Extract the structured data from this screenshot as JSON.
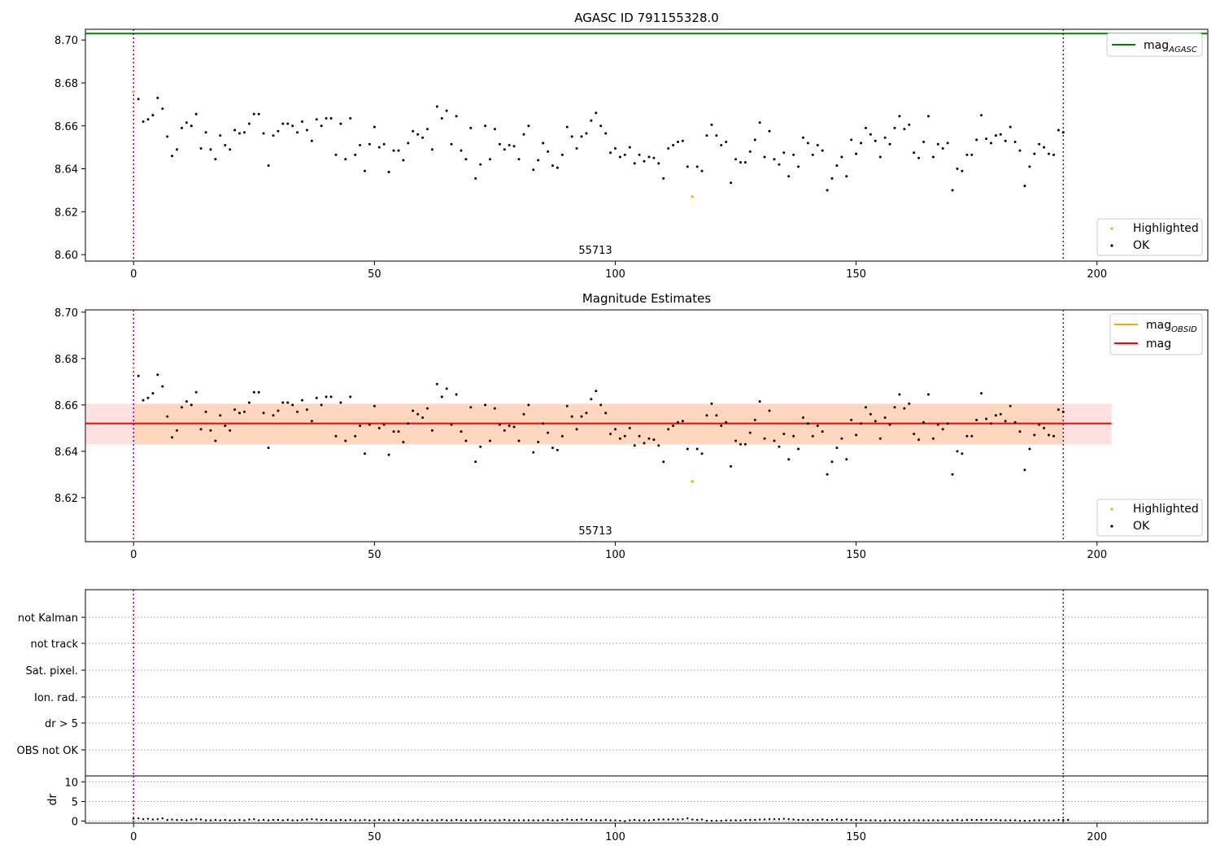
{
  "chart_data": [
    {
      "type": "scatter",
      "title": "AGASC ID 791155328.0",
      "xlim": [
        -10,
        223
      ],
      "ylim": [
        8.597,
        8.705
      ],
      "xticks": [
        0,
        50,
        100,
        150,
        200
      ],
      "yticks": [
        8.6,
        8.62,
        8.64,
        8.66,
        8.68,
        8.7
      ],
      "ytick_labels": [
        "8.60",
        "8.62",
        "8.64",
        "8.66",
        "8.68",
        "8.70"
      ],
      "grid": false,
      "legend_upper": {
        "placement": "top-right",
        "entries": [
          {
            "label": "mag",
            "sub": "AGASC",
            "color": "#008000",
            "kind": "line"
          }
        ]
      },
      "legend_lower": {
        "placement": "bottom-right",
        "entries": [
          {
            "label": "Highlighted",
            "color": "#ffa500",
            "kind": "dot"
          },
          {
            "label": "OK",
            "color": "#000000",
            "kind": "dot"
          }
        ]
      },
      "annotation": {
        "text": "55713",
        "x": 96.5
      },
      "mag_agasc": 8.703,
      "vlines": [
        0,
        193
      ],
      "highlighted": [
        {
          "x": 0,
          "y": 8.676
        },
        {
          "x": 116,
          "y": 8.627
        }
      ]
    },
    {
      "type": "scatter",
      "title": "Magnitude Estimates",
      "xlim": [
        -10,
        223
      ],
      "ylim": [
        8.601,
        8.701
      ],
      "xticks": [
        0,
        50,
        100,
        150,
        200
      ],
      "yticks": [
        8.62,
        8.64,
        8.66,
        8.68,
        8.7
      ],
      "ytick_labels": [
        "8.62",
        "8.64",
        "8.66",
        "8.68",
        "8.70"
      ],
      "grid": false,
      "legend_upper": {
        "placement": "top-right",
        "entries": [
          {
            "label": "mag",
            "sub": "OBSID",
            "color": "#ffa500",
            "kind": "line"
          },
          {
            "label": "mag",
            "sub": "",
            "color": "#ff0000",
            "kind": "line"
          }
        ]
      },
      "legend_lower": {
        "placement": "bottom-right",
        "entries": [
          {
            "label": "Highlighted",
            "color": "#ffa500",
            "kind": "dot"
          },
          {
            "label": "OK",
            "color": "#000000",
            "kind": "dot"
          }
        ]
      },
      "annotation": {
        "text": "55713",
        "x": 96.5
      },
      "mag_mean": 8.652,
      "mag_band": [
        8.643,
        8.6605
      ],
      "band_x_end": 203,
      "vlines": [
        0,
        193
      ],
      "highlighted": [
        {
          "x": 0,
          "y": 8.676
        },
        {
          "x": 116,
          "y": 8.627
        }
      ]
    },
    {
      "type": "scatter",
      "title": "",
      "xlim": [
        -10,
        223
      ],
      "xticks": [
        0,
        50,
        100,
        150,
        200
      ],
      "flag_labels": [
        "not Kalman",
        "not track",
        "Sat. pixel.",
        "Ion. rad.",
        "dr > 5",
        "OBS not OK"
      ],
      "ylabel_dr": "dr",
      "dr_ylim": [
        -0.5,
        11.5
      ],
      "dr_yticks": [
        0,
        5,
        10
      ],
      "vlines": [
        0,
        193
      ]
    }
  ],
  "ok_points": [
    [
      1,
      8.6725
    ],
    [
      2,
      8.662
    ],
    [
      3,
      8.663
    ],
    [
      4,
      8.665
    ],
    [
      5,
      8.673
    ],
    [
      6,
      8.668
    ],
    [
      7,
      8.655
    ],
    [
      8,
      8.646
    ],
    [
      9,
      8.649
    ],
    [
      10,
      8.659
    ],
    [
      11,
      8.6615
    ],
    [
      12,
      8.66
    ],
    [
      13,
      8.6655
    ],
    [
      14,
      8.6495
    ],
    [
      15,
      8.657
    ],
    [
      16,
      8.649
    ],
    [
      17,
      8.6445
    ],
    [
      18,
      8.6555
    ],
    [
      19,
      8.651
    ],
    [
      20,
      8.649
    ],
    [
      21,
      8.658
    ],
    [
      22,
      8.6565
    ],
    [
      23,
      8.657
    ],
    [
      24,
      8.661
    ],
    [
      25,
      8.6655
    ],
    [
      26,
      8.6655
    ],
    [
      27,
      8.6565
    ],
    [
      28,
      8.6415
    ],
    [
      29,
      8.6555
    ],
    [
      30,
      8.6575
    ],
    [
      31,
      8.661
    ],
    [
      32,
      8.661
    ],
    [
      33,
      8.66
    ],
    [
      34,
      8.657
    ],
    [
      35,
      8.662
    ],
    [
      36,
      8.658
    ],
    [
      37,
      8.653
    ],
    [
      38,
      8.663
    ],
    [
      39,
      8.66
    ],
    [
      40,
      8.6635
    ],
    [
      41,
      8.6635
    ],
    [
      42,
      8.6465
    ],
    [
      43,
      8.661
    ],
    [
      44,
      8.6445
    ],
    [
      45,
      8.6635
    ],
    [
      46,
      8.6465
    ],
    [
      47,
      8.651
    ],
    [
      48,
      8.639
    ],
    [
      49,
      8.6515
    ],
    [
      50,
      8.6595
    ],
    [
      51,
      8.65
    ],
    [
      52,
      8.6515
    ],
    [
      53,
      8.6385
    ],
    [
      54,
      8.6485
    ],
    [
      55,
      8.6485
    ],
    [
      56,
      8.644
    ],
    [
      57,
      8.652
    ],
    [
      58,
      8.6575
    ],
    [
      59,
      8.656
    ],
    [
      60,
      8.6545
    ],
    [
      61,
      8.6585
    ],
    [
      62,
      8.649
    ],
    [
      63,
      8.669
    ],
    [
      64,
      8.6635
    ],
    [
      65,
      8.667
    ],
    [
      66,
      8.6515
    ],
    [
      67,
      8.6645
    ],
    [
      68,
      8.6485
    ],
    [
      69,
      8.6445
    ],
    [
      70,
      8.659
    ],
    [
      71,
      8.6355
    ],
    [
      72,
      8.642
    ],
    [
      73,
      8.66
    ],
    [
      74,
      8.6445
    ],
    [
      75,
      8.6585
    ],
    [
      76,
      8.6515
    ],
    [
      77,
      8.649
    ],
    [
      78,
      8.651
    ],
    [
      79,
      8.6505
    ],
    [
      80,
      8.6445
    ],
    [
      81,
      8.656
    ],
    [
      82,
      8.66
    ],
    [
      83,
      8.6395
    ],
    [
      84,
      8.644
    ],
    [
      85,
      8.652
    ],
    [
      86,
      8.648
    ],
    [
      87,
      8.6415
    ],
    [
      88,
      8.6405
    ],
    [
      89,
      8.6465
    ],
    [
      90,
      8.6595
    ],
    [
      91,
      8.655
    ],
    [
      92,
      8.6495
    ],
    [
      93,
      8.655
    ],
    [
      94,
      8.6565
    ],
    [
      95,
      8.6625
    ],
    [
      96,
      8.666
    ],
    [
      97,
      8.66
    ],
    [
      98,
      8.6565
    ],
    [
      99,
      8.6475
    ],
    [
      100,
      8.6495
    ],
    [
      101,
      8.6455
    ],
    [
      102,
      8.6465
    ],
    [
      103,
      8.65
    ],
    [
      104,
      8.6425
    ],
    [
      105,
      8.6465
    ],
    [
      106,
      8.6435
    ],
    [
      107,
      8.6455
    ],
    [
      108,
      8.645
    ],
    [
      109,
      8.6425
    ],
    [
      110,
      8.6355
    ],
    [
      111,
      8.6495
    ],
    [
      112,
      8.651
    ],
    [
      113,
      8.6525
    ],
    [
      114,
      8.653
    ],
    [
      115,
      8.641
    ],
    [
      117,
      8.641
    ],
    [
      118,
      8.639
    ],
    [
      119,
      8.6555
    ],
    [
      120,
      8.6605
    ],
    [
      121,
      8.6555
    ],
    [
      122,
      8.651
    ],
    [
      123,
      8.6525
    ],
    [
      124,
      8.6335
    ],
    [
      125,
      8.6445
    ],
    [
      126,
      8.643
    ],
    [
      127,
      8.643
    ],
    [
      128,
      8.648
    ],
    [
      129,
      8.6535
    ],
    [
      130,
      8.6615
    ],
    [
      131,
      8.6455
    ],
    [
      132,
      8.6575
    ],
    [
      133,
      8.6445
    ],
    [
      134,
      8.642
    ],
    [
      135,
      8.6475
    ],
    [
      136,
      8.6365
    ],
    [
      137,
      8.6465
    ],
    [
      138,
      8.641
    ],
    [
      139,
      8.6545
    ],
    [
      140,
      8.652
    ],
    [
      141,
      8.6465
    ],
    [
      142,
      8.651
    ],
    [
      143,
      8.6485
    ],
    [
      144,
      8.63
    ],
    [
      145,
      8.6355
    ],
    [
      146,
      8.6415
    ],
    [
      147,
      8.6455
    ],
    [
      148,
      8.6365
    ],
    [
      149,
      8.6535
    ],
    [
      150,
      8.647
    ],
    [
      151,
      8.652
    ],
    [
      152,
      8.659
    ],
    [
      153,
      8.656
    ],
    [
      154,
      8.653
    ],
    [
      155,
      8.6455
    ],
    [
      156,
      8.6545
    ],
    [
      157,
      8.6515
    ],
    [
      158,
      8.659
    ],
    [
      159,
      8.6645
    ],
    [
      160,
      8.6585
    ],
    [
      161,
      8.6605
    ],
    [
      162,
      8.6475
    ],
    [
      163,
      8.645
    ],
    [
      164,
      8.6525
    ],
    [
      165,
      8.6645
    ],
    [
      166,
      8.6455
    ],
    [
      167,
      8.6515
    ],
    [
      168,
      8.6495
    ],
    [
      169,
      8.652
    ],
    [
      170,
      8.63
    ],
    [
      171,
      8.64
    ],
    [
      172,
      8.639
    ],
    [
      173,
      8.6465
    ],
    [
      174,
      8.6465
    ],
    [
      175,
      8.6535
    ],
    [
      176,
      8.665
    ],
    [
      177,
      8.654
    ],
    [
      178,
      8.652
    ],
    [
      179,
      8.6555
    ],
    [
      180,
      8.656
    ],
    [
      181,
      8.653
    ],
    [
      182,
      8.6595
    ],
    [
      183,
      8.6525
    ],
    [
      184,
      8.6485
    ],
    [
      185,
      8.632
    ],
    [
      186,
      8.641
    ],
    [
      187,
      8.647
    ],
    [
      188,
      8.6515
    ],
    [
      189,
      8.65
    ],
    [
      190,
      8.647
    ],
    [
      191,
      8.6465
    ],
    [
      192,
      8.658
    ],
    [
      193,
      8.657
    ]
  ],
  "dr_values": [
    0.6,
    0.7,
    0.5,
    0.6,
    0.4,
    0.5,
    0.7,
    0.3,
    0.4,
    0.3,
    0.3,
    0.2,
    0.4,
    0.5,
    0.4,
    0.2,
    0.2,
    0.3,
    0.2,
    0.3,
    0.2,
    0.2,
    0.3,
    0.2,
    0.4,
    0.5,
    0.2,
    0.3,
    0.2,
    0.3,
    0.3,
    0.2,
    0.3,
    0.2,
    0.2,
    0.3,
    0.4,
    0.5,
    0.4,
    0.3,
    0.3,
    0.2,
    0.2,
    0.3,
    0.2,
    0.3,
    0.2,
    0.2,
    0.3,
    0.2,
    0.2,
    0.3,
    0.2,
    0.2,
    0.2,
    0.3,
    0.2,
    0.2,
    0.2,
    0.3,
    0.2,
    0.2,
    0.2,
    0.2,
    0.3,
    0.2,
    0.2,
    0.3,
    0.2,
    0.2,
    0.2,
    0.2,
    0.3,
    0.2,
    0.2,
    0.2,
    0.2,
    0.3,
    0.2,
    0.2,
    0.2,
    0.2,
    0.2,
    0.2,
    0.2,
    0.2,
    0.3,
    0.2,
    0.2,
    0.3,
    0.4,
    0.3,
    0.3,
    0.4,
    0.3,
    0.3,
    0.2,
    0.2,
    0.3,
    0.2,
    0.2,
    0.1,
    0.0,
    0.2,
    0.3,
    0.2,
    0.2,
    0.2,
    0.3,
    0.4,
    0.4,
    0.4,
    0.5,
    0.4,
    0.5,
    0.7,
    0.4,
    0.3,
    0.4,
    0.1,
    0.1,
    0.1,
    0.1,
    0.2,
    0.2,
    0.2,
    0.2,
    0.3,
    0.3,
    0.3,
    0.4,
    0.4,
    0.5,
    0.5,
    0.5,
    0.6,
    0.5,
    0.4,
    0.3,
    0.3,
    0.3,
    0.3,
    0.3,
    0.4,
    0.3,
    0.3,
    0.4,
    0.3,
    0.4,
    0.3,
    0.3,
    0.3,
    0.2,
    0.2,
    0.2,
    0.1,
    0.2,
    0.2,
    0.2,
    0.2,
    0.2,
    0.2,
    0.2,
    0.2,
    0.2,
    0.2,
    0.2,
    0.2,
    0.2,
    0.2,
    0.2,
    0.3,
    0.2,
    0.3,
    0.3,
    0.3,
    0.3,
    0.3,
    0.3,
    0.3,
    0.2,
    0.2,
    0.2,
    0.2,
    0.1,
    0.1,
    0.1,
    0.2,
    0.2,
    0.2,
    0.2,
    0.2,
    0.3,
    0.3,
    0.3
  ]
}
